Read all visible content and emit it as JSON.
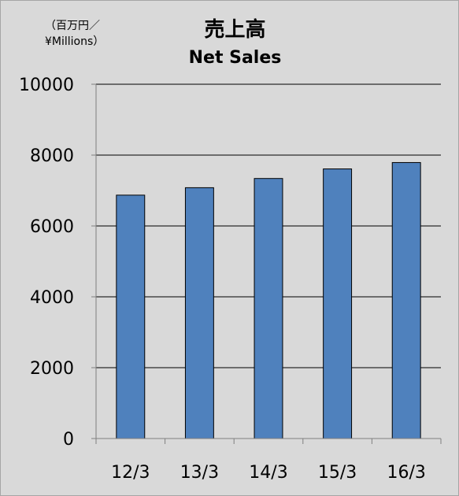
{
  "chart_data": {
    "type": "bar",
    "title": "売上高",
    "subtitle": "Net Sales",
    "ylabel": "（百万円／\n¥Millions）",
    "xlabel": "",
    "categories": [
      "12/3",
      "13/3",
      "14/3",
      "15/3",
      "16/3"
    ],
    "values": [
      6870,
      7080,
      7340,
      7610,
      7790
    ],
    "ylim": [
      0,
      10000
    ],
    "yticks": [
      0,
      2000,
      4000,
      6000,
      8000,
      10000
    ],
    "grid": true,
    "bar_color": "#4f81bd",
    "background_color": "#d9d9d9"
  }
}
